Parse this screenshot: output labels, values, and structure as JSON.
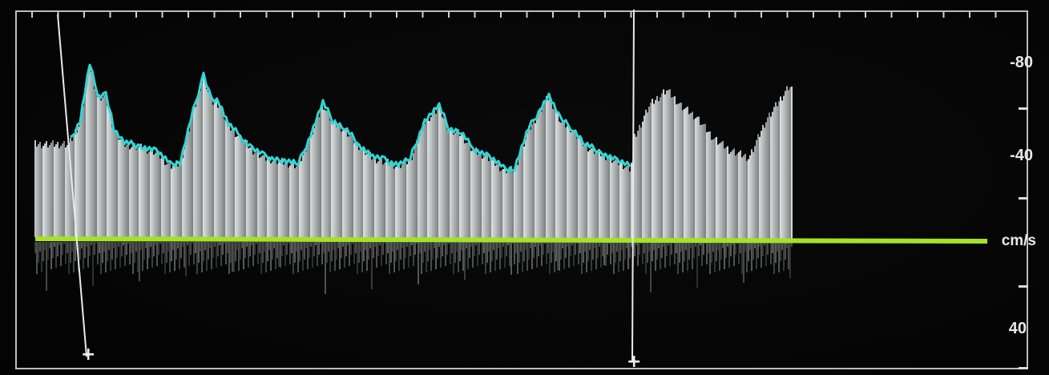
{
  "velocity_scale": {
    "unit": "cm/s",
    "labels": [
      "-80",
      "-40",
      "40"
    ],
    "baseline_label": "cm/s"
  },
  "waveform": {
    "cycles": 5,
    "envelope_color": "#2fd6d6",
    "baseline_color": "#a4e12a",
    "spectrum_color": "#e6ecec"
  },
  "calipers": {
    "marker_glyph": "+"
  }
}
